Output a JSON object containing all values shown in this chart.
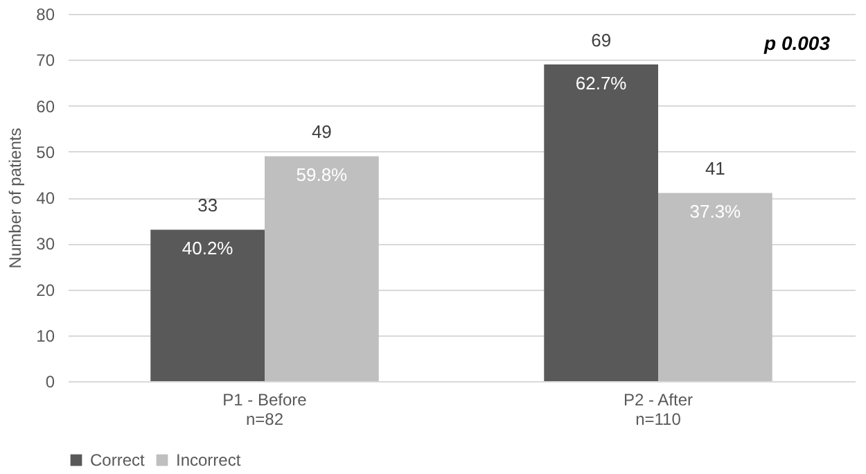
{
  "chart_data": {
    "type": "bar",
    "ylabel": "Number of patients",
    "categories": [
      "P1 - Before\nn=82",
      "P2 - After\nn=110"
    ],
    "series": [
      {
        "name": "Correct",
        "color": "#595959",
        "values": [
          33,
          69
        ]
      },
      {
        "name": "Incorrect",
        "color": "#bfbfbf",
        "values": [
          49,
          41
        ]
      }
    ],
    "ylim": [
      0,
      80
    ],
    "yticks": [
      0,
      10,
      20,
      30,
      40,
      50,
      60,
      70,
      80
    ],
    "grid": "y",
    "legend": "bottom",
    "data_labels": true,
    "annotations": [
      "p 0.003",
      {
        "text": "40.2%",
        "x": "P1 - Before\nn=82",
        "y": 33
      },
      {
        "text": "59.8%",
        "x": "P1 - Before\nn=82",
        "y": 49
      },
      {
        "text": "62.7%",
        "x": "P2 - After\nn=110",
        "y": 69
      },
      {
        "text": "37.3%",
        "x": "P2 - After\nn=110",
        "y": 41
      }
    ]
  }
}
